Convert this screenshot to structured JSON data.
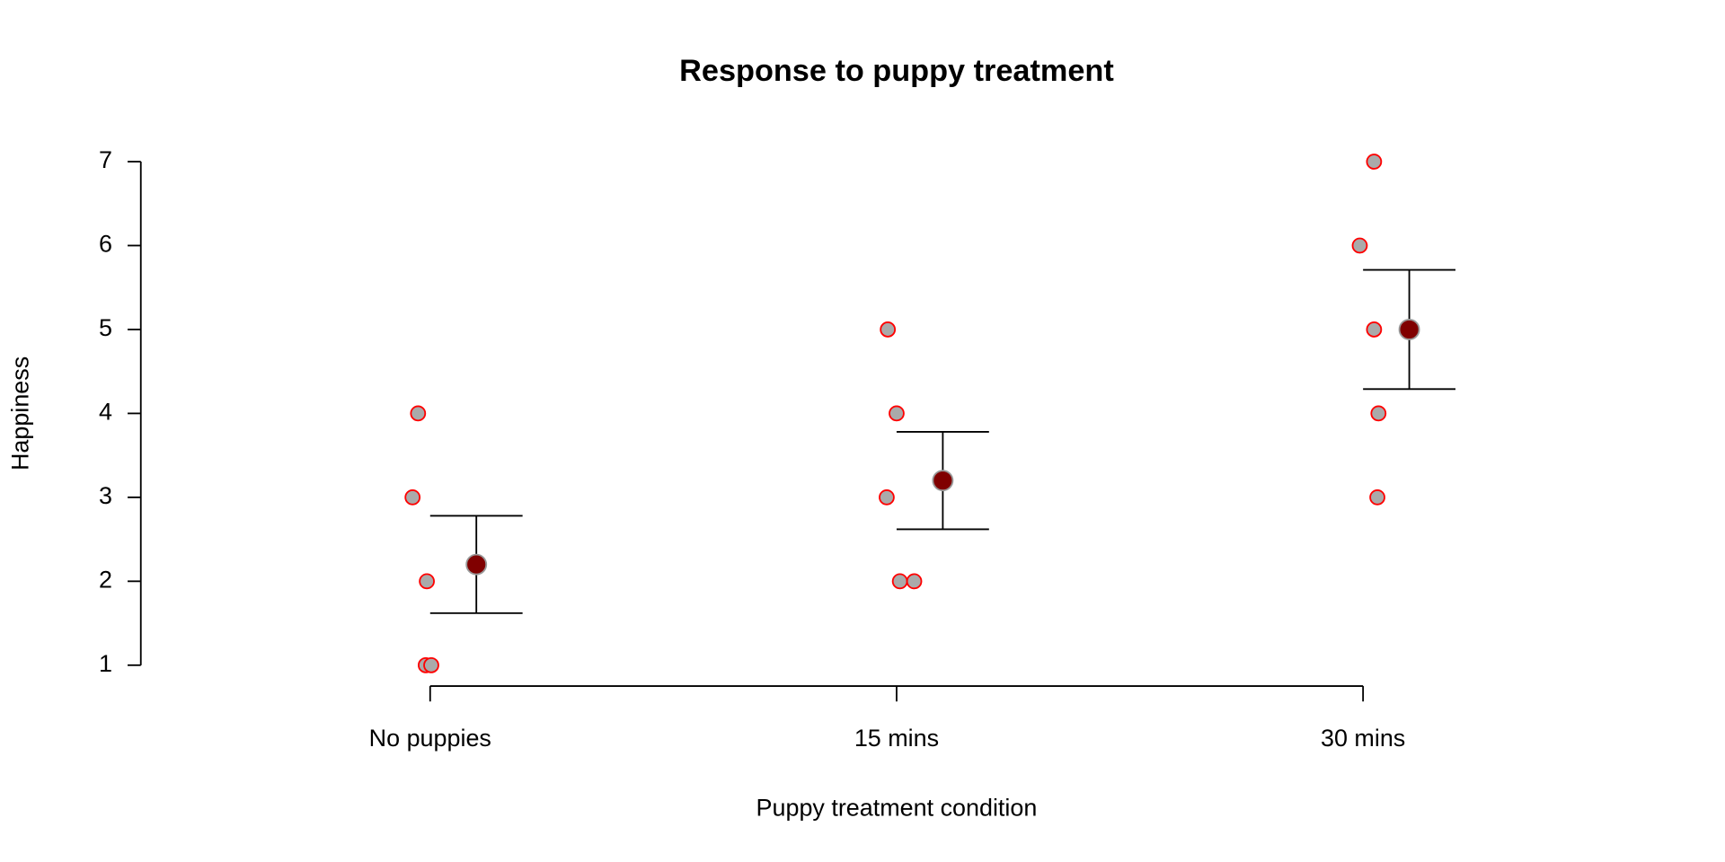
{
  "chart_data": {
    "type": "strip",
    "title": "Response to puppy treatment",
    "x_label": "Puppy treatment condition",
    "y_label": "Happiness",
    "categories": [
      "No puppies",
      "15 mins",
      "30 mins"
    ],
    "points": [
      [
        4,
        3,
        2,
        1,
        1
      ],
      [
        5,
        4,
        3,
        2,
        2
      ],
      [
        7,
        6,
        5,
        4,
        3
      ]
    ],
    "means": [
      2.2,
      3.2,
      5.0
    ],
    "errors": [
      0.58,
      0.58,
      0.71
    ],
    "point_color": "#aaaaaa",
    "point_edge_color": "#ff0000",
    "mean_color": "#800000",
    "ylim": [
      1,
      7
    ],
    "yticks": [
      1,
      2,
      3,
      4,
      5,
      6,
      7
    ]
  }
}
